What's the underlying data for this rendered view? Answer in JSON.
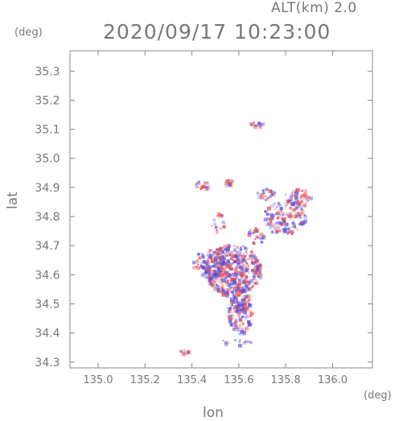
{
  "header": {
    "altitude": "ALT(km) 2.0",
    "datetime": "2020/09/17 10:23:00"
  },
  "axes": {
    "x_unit": "(deg)",
    "y_unit": "(deg)",
    "x_label": "lon",
    "y_label": "lat"
  },
  "colors": {
    "frame": "#888888",
    "text": "#777777",
    "positive": "#e85050",
    "negative": "#5050e8"
  },
  "chart_data": {
    "type": "heatmap",
    "xlabel": "lon",
    "ylabel": "lat",
    "xlim": [
      134.88,
      136.17
    ],
    "ylim": [
      34.28,
      35.37
    ],
    "x_ticks": [
      135.0,
      135.2,
      135.4,
      135.6,
      135.8,
      136.0
    ],
    "x_tick_labels": [
      "135.0",
      "135.2",
      "135.4",
      "135.6",
      "135.8",
      "136.0"
    ],
    "y_ticks": [
      34.3,
      34.4,
      34.5,
      34.6,
      34.7,
      34.8,
      34.9,
      35.0,
      35.1,
      35.2,
      35.3
    ],
    "y_tick_labels": [
      "34.3",
      "34.4",
      "34.5",
      "34.6",
      "34.7",
      "34.8",
      "34.9",
      "35.0",
      "35.1",
      "35.2",
      "35.3"
    ],
    "clusters": [
      {
        "lon": 135.57,
        "lat": 34.62,
        "r_lon": 0.12,
        "r_lat": 0.09,
        "density": 0.75
      },
      {
        "lon": 135.6,
        "lat": 34.48,
        "r_lon": 0.05,
        "r_lat": 0.08,
        "density": 0.7
      },
      {
        "lon": 135.47,
        "lat": 34.64,
        "r_lon": 0.07,
        "r_lat": 0.05,
        "density": 0.6
      },
      {
        "lon": 135.79,
        "lat": 34.8,
        "r_lon": 0.09,
        "r_lat": 0.06,
        "density": 0.45
      },
      {
        "lon": 135.85,
        "lat": 34.87,
        "r_lon": 0.06,
        "r_lat": 0.03,
        "density": 0.55
      },
      {
        "lon": 135.71,
        "lat": 34.88,
        "r_lon": 0.04,
        "r_lat": 0.02,
        "density": 0.4
      },
      {
        "lon": 135.44,
        "lat": 34.91,
        "r_lon": 0.03,
        "r_lat": 0.015,
        "density": 0.6
      },
      {
        "lon": 135.67,
        "lat": 35.12,
        "r_lon": 0.03,
        "r_lat": 0.01,
        "density": 0.6
      },
      {
        "lon": 135.36,
        "lat": 34.34,
        "r_lon": 0.02,
        "r_lat": 0.01,
        "density": 0.6
      },
      {
        "lon": 135.58,
        "lat": 34.37,
        "r_lon": 0.07,
        "r_lat": 0.01,
        "density": 0.25
      },
      {
        "lon": 135.51,
        "lat": 34.78,
        "r_lon": 0.03,
        "r_lat": 0.04,
        "density": 0.2
      },
      {
        "lon": 135.67,
        "lat": 34.74,
        "r_lon": 0.04,
        "r_lat": 0.03,
        "density": 0.3
      },
      {
        "lon": 135.55,
        "lat": 34.92,
        "r_lon": 0.02,
        "r_lat": 0.01,
        "density": 0.4
      }
    ]
  }
}
